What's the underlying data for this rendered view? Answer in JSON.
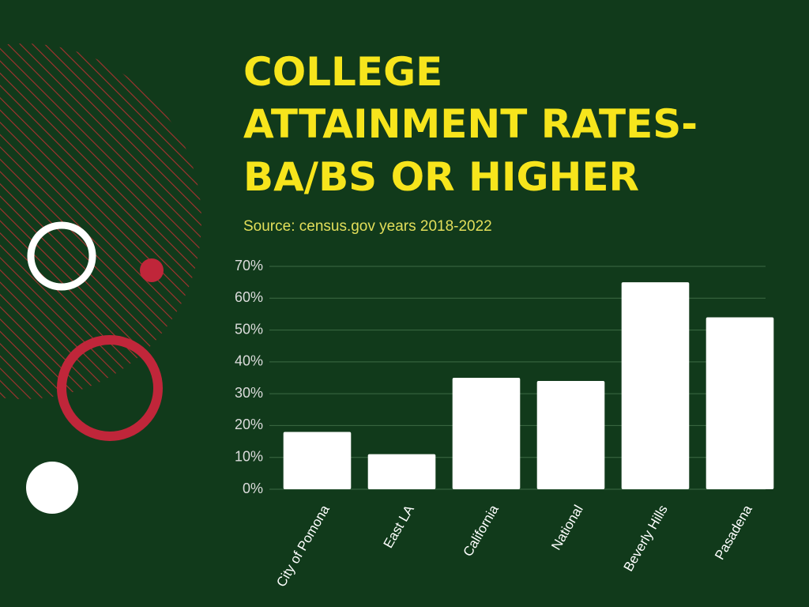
{
  "chart_data": {
    "type": "bar",
    "title": [
      "COLLEGE",
      "ATTAINMENT RATES-",
      "BA/BS OR HIGHER"
    ],
    "subtitle": "Source: census.gov years 2018-2022",
    "categories": [
      "City of Pomona",
      "East LA",
      "California",
      "National",
      "Beverly Hills",
      "Pasadena"
    ],
    "values": [
      18,
      11,
      35,
      34,
      65,
      54
    ],
    "color": "#ffffff",
    "ylim": [
      0,
      70
    ],
    "yticks": [
      {
        "value": 0,
        "label": "0%"
      },
      {
        "value": 10,
        "label": "10%"
      },
      {
        "value": 20,
        "label": "20%"
      },
      {
        "value": 30,
        "label": "30%"
      },
      {
        "value": 40,
        "label": "40%"
      },
      {
        "value": 50,
        "label": "50%"
      },
      {
        "value": 60,
        "label": "60%"
      },
      {
        "value": 70,
        "label": "70%"
      }
    ],
    "grid": true
  }
}
